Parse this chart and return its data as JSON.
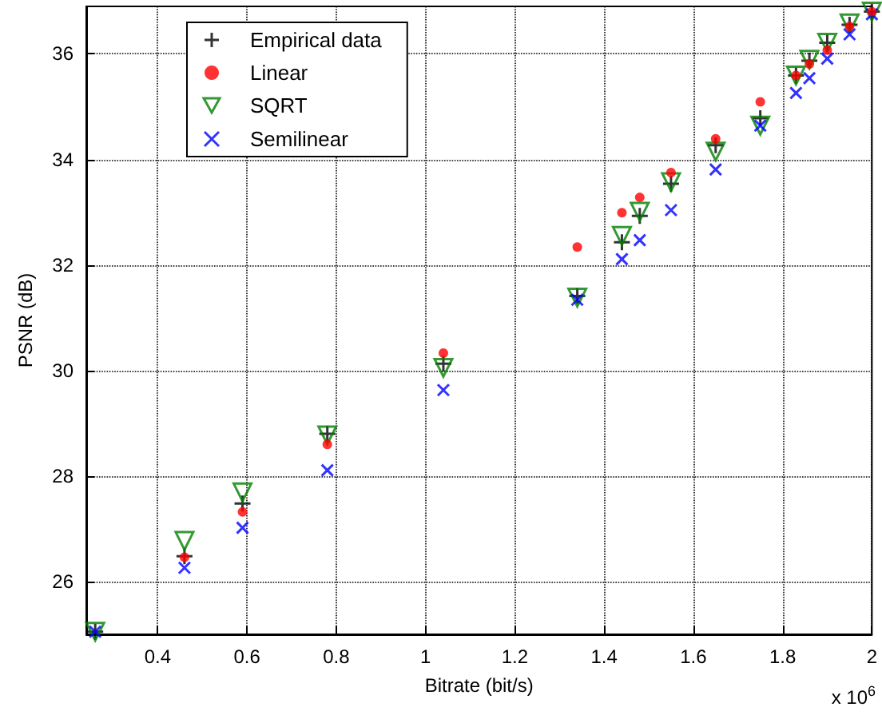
{
  "chart_data": {
    "type": "scatter",
    "xlabel": "Bitrate (bit/s)",
    "ylabel": "PSNR (dB)",
    "annotations": [
      "x 10$^{6}$"
    ],
    "x": [
      0.26,
      0.46,
      0.59,
      0.78,
      1.04,
      1.34,
      1.44,
      1.48,
      1.55,
      1.65,
      1.75,
      1.83,
      1.86,
      1.9,
      1.95,
      2.0
    ],
    "series": [
      {
        "name": "Empirical data",
        "color": "#000000",
        "marker": "cross",
        "values": [
          25.05,
          26.48,
          27.48,
          28.8,
          30.13,
          31.41,
          32.43,
          32.93,
          33.54,
          34.27,
          34.78,
          35.59,
          35.87,
          36.21,
          36.55,
          36.8
        ]
      },
      {
        "name": "Linear",
        "color": "#ff0000",
        "marker": "circle",
        "values": [
          null,
          26.46,
          27.32,
          28.6,
          30.33,
          32.34,
          32.99,
          33.28,
          33.75,
          34.39,
          35.09,
          35.59,
          35.81,
          36.07,
          36.52,
          36.8
        ]
      },
      {
        "name": "SQRT",
        "color": "#008000",
        "marker": "triangle",
        "values": [
          25.05,
          26.77,
          27.69,
          28.77,
          30.05,
          31.38,
          32.55,
          33.01,
          33.57,
          34.15,
          34.64,
          35.59,
          35.89,
          36.21,
          36.58,
          36.8
        ]
      },
      {
        "name": "Semilinear",
        "color": "#0000ff",
        "marker": "x",
        "values": [
          25.05,
          26.26,
          27.02,
          28.11,
          29.63,
          31.34,
          32.11,
          32.47,
          33.04,
          33.81,
          34.64,
          35.26,
          35.54,
          35.91,
          36.37,
          36.75
        ]
      }
    ],
    "xlim": [
      0.24,
      2.0
    ],
    "xticks": [
      0.4,
      0.6,
      0.8,
      1,
      1.2,
      1.4,
      1.6,
      1.8,
      2
    ],
    "ylim": [
      25,
      36.9
    ],
    "yticks": [
      26,
      28,
      30,
      32,
      34,
      36
    ],
    "grid": true,
    "legend": "top left"
  }
}
